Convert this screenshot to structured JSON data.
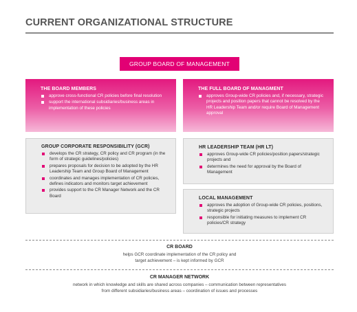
{
  "title": "CURRENT ORGANIZATIONAL STRUCTURE",
  "top_box": "GROUP BOARD OF MANAGEMENT",
  "board_members": {
    "title": "THE BOARD MEMBERS",
    "items": [
      "approve cross-functional CR policies before final resolution",
      "support the international subsidiaries/business areas in implementation of these policies"
    ]
  },
  "full_board": {
    "title": "THE FULL BOARD OF MANAGMENT",
    "items": [
      "approves Group-wide CR policies and, if necessary, strategic projects and position papers that cannot be resolved by the HR Leadership Team and/or require Board of Management approval"
    ]
  },
  "gcr": {
    "title": "GROUP CORPORATE RESPONSIBILITY (GCR)",
    "items": [
      "develops the CR strategy, CR policy and CR program (in the form of strategic guidelines/policies)",
      "prepares proposals for decision to be adopted by the HR Leadership Team and Group Board of Management",
      "coordinates and manages implementation of CR policies, defines indicators and monitors target achievement",
      "provides support to the CR Manager Network and the CR Board"
    ]
  },
  "hr_lt": {
    "title": "HR LEADERSHIP TEAM (HR LT)",
    "items": [
      "approves Group-wide CR policies/position papers/strategic projects and",
      "determines the need for approval by the Board of Management"
    ]
  },
  "local_mgmt": {
    "title": "LOCAL MANAGEMENT",
    "items": [
      "approves the adoption of Group-wide CR policies, positions, strategic projects",
      "responsible for initiating measures to implement CR policies/CR strategy"
    ]
  },
  "cr_board": {
    "title": "CR BOARD",
    "desc_line1": "helps GCR coordinate implementation of the CR policy and",
    "desc_line2": "target achievement – is kept informed by GCR"
  },
  "cr_network": {
    "title": "CR MANAGER NETWORK",
    "desc_line1": "network in which knowledge and skills are shared across companies – communication between representatives",
    "desc_line2": "from different subsidiaries/business areas – coordination of issues and processes"
  }
}
